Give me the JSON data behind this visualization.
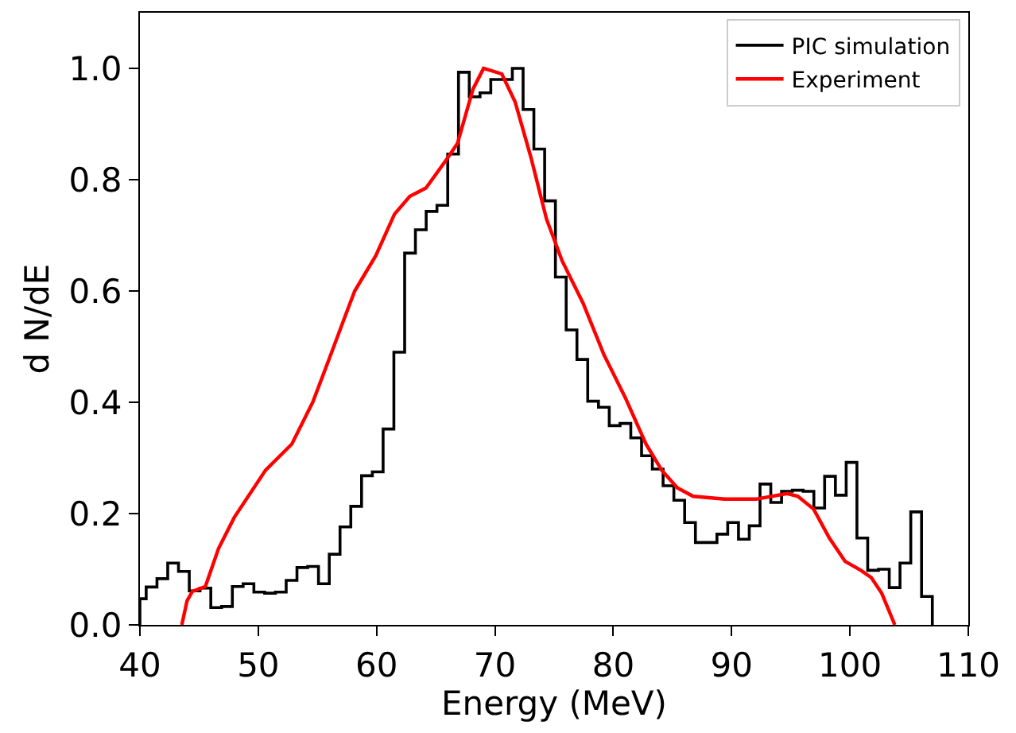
{
  "chart_data": {
    "type": "histogram",
    "xlabel": "Energy (MeV)",
    "ylabel": "d N/dE",
    "xlim": [
      40,
      110
    ],
    "xticks": [
      40,
      50,
      60,
      70,
      80,
      90,
      100,
      110
    ],
    "ylim": [
      0,
      1.1
    ],
    "yticks": [
      {
        "value": 0,
        "label": "0.0"
      },
      {
        "value": 0.2,
        "label": "0.2"
      },
      {
        "value": 0.4,
        "label": "0.4"
      },
      {
        "value": 0.6,
        "label": "0.6"
      },
      {
        "value": 0.8,
        "label": "0.8"
      },
      {
        "value": 1.0,
        "label": "1.0"
      }
    ],
    "legend": "top right",
    "series": [
      {
        "name": "PIC simulation",
        "color": "#000000",
        "bins": [
          40,
          40.53,
          41.44,
          42.35,
          43.26,
          44.17,
          45.08,
          45.99,
          46.9,
          47.81,
          48.72,
          49.63,
          50.54,
          51.45,
          52.36,
          53.27,
          54.18,
          55.09,
          56.0,
          56.91,
          57.82,
          58.73,
          59.64,
          60.55,
          61.46,
          62.37,
          63.28,
          64.19,
          65.1,
          66.01,
          66.92,
          67.83,
          68.74,
          69.65,
          70.56,
          71.47,
          72.38,
          73.29,
          74.2,
          75.11,
          76.02,
          76.93,
          77.84,
          78.75,
          79.66,
          80.57,
          81.48,
          82.39,
          83.3,
          84.21,
          85.12,
          86.03,
          86.94,
          87.85,
          88.76,
          89.67,
          90.58,
          91.49,
          92.4,
          93.31,
          94.22,
          95.13,
          96.04,
          96.95,
          97.86,
          98.77,
          99.68,
          100.59,
          101.5,
          102.41,
          103.32,
          104.23,
          105.14,
          106.05,
          106.96
        ],
        "values": [
          0.047,
          0.068,
          0.083,
          0.111,
          0.096,
          0.061,
          0.066,
          0.031,
          0.033,
          0.069,
          0.074,
          0.059,
          0.057,
          0.059,
          0.08,
          0.103,
          0.105,
          0.074,
          0.127,
          0.176,
          0.213,
          0.268,
          0.275,
          0.352,
          0.49,
          0.668,
          0.71,
          0.743,
          0.754,
          0.846,
          0.993,
          0.949,
          0.956,
          0.98,
          0.98,
          1.0,
          0.926,
          0.855,
          0.762,
          0.625,
          0.53,
          0.477,
          0.402,
          0.391,
          0.358,
          0.362,
          0.336,
          0.304,
          0.28,
          0.25,
          0.224,
          0.184,
          0.148,
          0.148,
          0.163,
          0.184,
          0.154,
          0.178,
          0.253,
          0.22,
          0.24,
          0.242,
          0.24,
          0.21,
          0.267,
          0.233,
          0.292,
          0.156,
          0.098,
          0.1,
          0.067,
          0.111,
          0.203,
          0.051
        ]
      },
      {
        "name": "Experiment",
        "type": "line",
        "color": "#ff0000",
        "x": [
          43.54,
          43.98,
          44.43,
          45.53,
          46.64,
          47.97,
          50.62,
          52.84,
          54.6,
          55.94,
          57.26,
          58.15,
          59.92,
          61.51,
          62.8,
          64.17,
          65.94,
          66.83,
          68.15,
          69.04,
          70.58,
          71.7,
          73.03,
          74.36,
          75.68,
          77.45,
          79.22,
          81.0,
          82.76,
          84.09,
          85.42,
          86.75,
          89.4,
          92.06,
          94.7,
          95.6,
          96.93,
          98.26,
          99.59,
          100.92,
          101.8,
          102.68,
          103.79
        ],
        "values": [
          0,
          0.043,
          0.06,
          0.069,
          0.137,
          0.193,
          0.278,
          0.325,
          0.4,
          0.475,
          0.55,
          0.6,
          0.663,
          0.738,
          0.77,
          0.785,
          0.837,
          0.865,
          0.963,
          1.0,
          0.99,
          0.94,
          0.841,
          0.729,
          0.654,
          0.578,
          0.485,
          0.409,
          0.325,
          0.278,
          0.246,
          0.231,
          0.226,
          0.226,
          0.236,
          0.231,
          0.208,
          0.156,
          0.114,
          0.098,
          0.085,
          0.057,
          0
        ]
      }
    ]
  }
}
